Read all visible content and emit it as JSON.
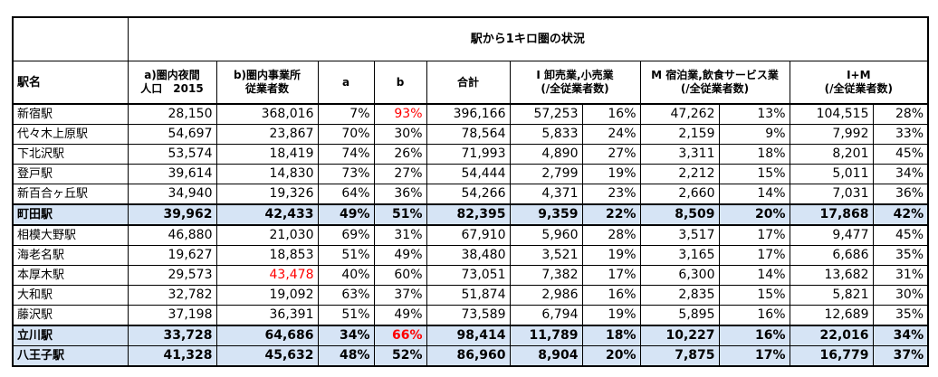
{
  "table": {
    "title": "駅から1キロ圏の状況",
    "headers": {
      "station": "駅名",
      "a_line1": "a)圏内夜間",
      "a_line2": "人口　2015",
      "b_line1": "b)圏内事業所",
      "b_line2": "従業者数",
      "a": "a",
      "b": "b",
      "total": "合計",
      "i_line1": "I 卸売業,小売業",
      "i_line2": "(/全従業者数)",
      "m_line1": "M 宿泊業,飲食サービス業",
      "m_line2": "(/全従業者数)",
      "im_line1": "I+M",
      "im_line2": "(/全従業者数)"
    },
    "rows": [
      {
        "name": "新宿駅",
        "a_pop": "28,150",
        "b_emp": "368,016",
        "a_pct": "7%",
        "b_pct": "93%",
        "total": "396,166",
        "i_val": "57,253",
        "i_pct": "16%",
        "m_val": "47,262",
        "m_pct": "13%",
        "im_val": "104,515",
        "im_pct": "28%"
      },
      {
        "name": "代々木上原駅",
        "a_pop": "54,697",
        "b_emp": "23,867",
        "a_pct": "70%",
        "b_pct": "30%",
        "total": "78,564",
        "i_val": "5,833",
        "i_pct": "24%",
        "m_val": "2,159",
        "m_pct": "9%",
        "im_val": "7,992",
        "im_pct": "33%"
      },
      {
        "name": "下北沢駅",
        "a_pop": "53,574",
        "b_emp": "18,419",
        "a_pct": "74%",
        "b_pct": "26%",
        "total": "71,993",
        "i_val": "4,890",
        "i_pct": "27%",
        "m_val": "3,311",
        "m_pct": "18%",
        "im_val": "8,201",
        "im_pct": "45%"
      },
      {
        "name": "登戸駅",
        "a_pop": "39,614",
        "b_emp": "14,830",
        "a_pct": "73%",
        "b_pct": "27%",
        "total": "54,444",
        "i_val": "2,799",
        "i_pct": "19%",
        "m_val": "2,212",
        "m_pct": "15%",
        "im_val": "5,011",
        "im_pct": "34%"
      },
      {
        "name": "新百合ヶ丘駅",
        "a_pop": "34,940",
        "b_emp": "19,326",
        "a_pct": "64%",
        "b_pct": "36%",
        "total": "54,266",
        "i_val": "4,371",
        "i_pct": "23%",
        "m_val": "2,660",
        "m_pct": "14%",
        "im_val": "7,031",
        "im_pct": "36%"
      },
      {
        "name": "町田駅",
        "a_pop": "39,962",
        "b_emp": "42,433",
        "a_pct": "49%",
        "b_pct": "51%",
        "total": "82,395",
        "i_val": "9,359",
        "i_pct": "22%",
        "m_val": "8,509",
        "m_pct": "20%",
        "im_val": "17,868",
        "im_pct": "42%"
      },
      {
        "name": "相模大野駅",
        "a_pop": "46,880",
        "b_emp": "21,030",
        "a_pct": "69%",
        "b_pct": "31%",
        "total": "67,910",
        "i_val": "5,960",
        "i_pct": "28%",
        "m_val": "3,517",
        "m_pct": "17%",
        "im_val": "9,477",
        "im_pct": "45%"
      },
      {
        "name": "海老名駅",
        "a_pop": "19,627",
        "b_emp": "18,853",
        "a_pct": "51%",
        "b_pct": "49%",
        "total": "38,480",
        "i_val": "3,521",
        "i_pct": "19%",
        "m_val": "3,165",
        "m_pct": "17%",
        "im_val": "6,686",
        "im_pct": "35%"
      },
      {
        "name": "本厚木駅",
        "a_pop": "29,573",
        "b_emp": "43,478",
        "a_pct": "40%",
        "b_pct": "60%",
        "total": "73,051",
        "i_val": "7,382",
        "i_pct": "17%",
        "m_val": "6,300",
        "m_pct": "14%",
        "im_val": "13,682",
        "im_pct": "31%"
      },
      {
        "name": "大和駅",
        "a_pop": "32,782",
        "b_emp": "19,092",
        "a_pct": "63%",
        "b_pct": "37%",
        "total": "51,874",
        "i_val": "2,986",
        "i_pct": "16%",
        "m_val": "2,835",
        "m_pct": "15%",
        "im_val": "5,821",
        "im_pct": "30%"
      },
      {
        "name": "藤沢駅",
        "a_pop": "37,198",
        "b_emp": "36,391",
        "a_pct": "51%",
        "b_pct": "49%",
        "total": "73,589",
        "i_val": "6,794",
        "i_pct": "19%",
        "m_val": "5,895",
        "m_pct": "16%",
        "im_val": "12,689",
        "im_pct": "35%"
      },
      {
        "name": "立川駅",
        "a_pop": "33,728",
        "b_emp": "64,686",
        "a_pct": "34%",
        "b_pct": "66%",
        "total": "98,414",
        "i_val": "11,789",
        "i_pct": "18%",
        "m_val": "10,227",
        "m_pct": "16%",
        "im_val": "22,016",
        "im_pct": "34%"
      },
      {
        "name": "八王子駅",
        "a_pop": "41,328",
        "b_emp": "45,632",
        "a_pct": "48%",
        "b_pct": "52%",
        "total": "86,960",
        "i_val": "8,904",
        "i_pct": "20%",
        "m_val": "7,875",
        "m_pct": "17%",
        "im_val": "16,779",
        "im_pct": "37%"
      }
    ],
    "highlight_color": "#d6e4f5",
    "emphasis_color": "#ff0000"
  }
}
